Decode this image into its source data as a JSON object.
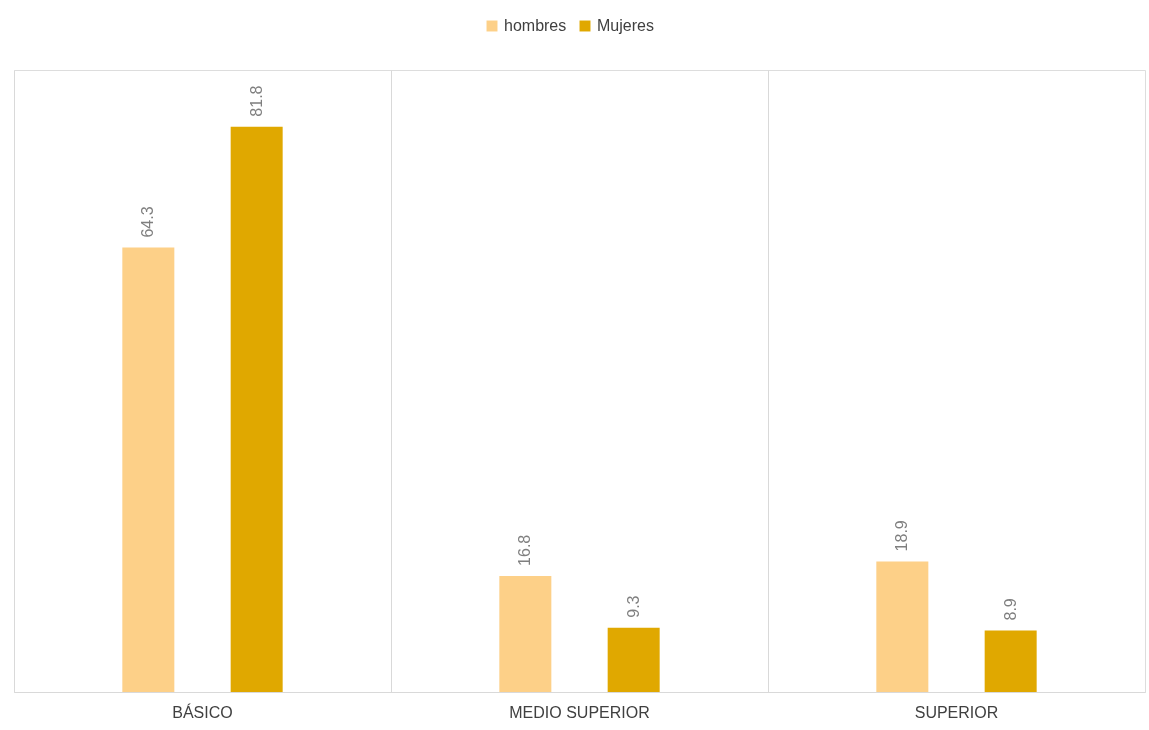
{
  "chart_data": {
    "type": "bar",
    "categories": [
      "BÁSICO",
      "MEDIO SUPERIOR",
      "SUPERIOR"
    ],
    "series": [
      {
        "name": "hombres",
        "color": "#fdd088",
        "values": [
          64.3,
          16.8,
          18.9
        ]
      },
      {
        "name": "Mujeres",
        "color": "#e0a800",
        "values": [
          81.8,
          9.3,
          8.9
        ]
      }
    ],
    "data_labels": true,
    "tick_labels": "x",
    "grid": "x",
    "legend": "top"
  }
}
